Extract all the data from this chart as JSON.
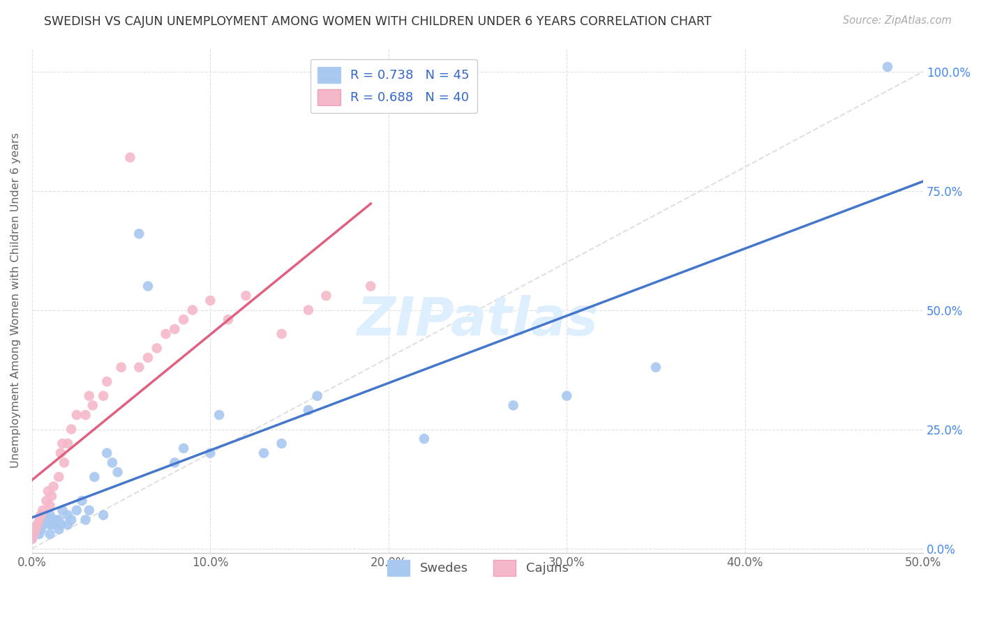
{
  "title": "SWEDISH VS CAJUN UNEMPLOYMENT AMONG WOMEN WITH CHILDREN UNDER 6 YEARS CORRELATION CHART",
  "source": "Source: ZipAtlas.com",
  "ylabel": "Unemployment Among Women with Children Under 6 years",
  "xlim": [
    0,
    0.5
  ],
  "ylim": [
    -0.01,
    1.05
  ],
  "legend_label1": "R = 0.738   N = 45",
  "legend_label2": "R = 0.688   N = 40",
  "legend_label_bottom1": "Swedes",
  "legend_label_bottom2": "Cajuns",
  "swedes_color": "#a8c8f0",
  "cajuns_color": "#f5b8c8",
  "regression_color_swedes": "#4477cc",
  "regression_color_cajuns": "#e06080",
  "diagonal_color": "#d8d8d8",
  "swedes_x": [
    0.0,
    0.001,
    0.002,
    0.003,
    0.004,
    0.005,
    0.006,
    0.007,
    0.008,
    0.01,
    0.01,
    0.01,
    0.012,
    0.013,
    0.015,
    0.015,
    0.016,
    0.017,
    0.02,
    0.02,
    0.022,
    0.025,
    0.028,
    0.03,
    0.032,
    0.035,
    0.04,
    0.042,
    0.045,
    0.048,
    0.06,
    0.065,
    0.08,
    0.085,
    0.1,
    0.105,
    0.13,
    0.14,
    0.155,
    0.16,
    0.22,
    0.27,
    0.3,
    0.35,
    0.48
  ],
  "swedes_y": [
    0.02,
    0.03,
    0.04,
    0.05,
    0.03,
    0.04,
    0.05,
    0.06,
    0.07,
    0.03,
    0.05,
    0.07,
    0.05,
    0.06,
    0.04,
    0.06,
    0.05,
    0.08,
    0.05,
    0.07,
    0.06,
    0.08,
    0.1,
    0.06,
    0.08,
    0.15,
    0.07,
    0.2,
    0.18,
    0.16,
    0.66,
    0.55,
    0.18,
    0.21,
    0.2,
    0.28,
    0.2,
    0.22,
    0.29,
    0.32,
    0.23,
    0.3,
    0.32,
    0.38,
    1.01
  ],
  "cajuns_x": [
    0.0,
    0.001,
    0.002,
    0.003,
    0.004,
    0.005,
    0.006,
    0.008,
    0.009,
    0.01,
    0.011,
    0.012,
    0.015,
    0.016,
    0.017,
    0.018,
    0.02,
    0.022,
    0.025,
    0.03,
    0.032,
    0.034,
    0.04,
    0.042,
    0.05,
    0.055,
    0.06,
    0.065,
    0.07,
    0.075,
    0.08,
    0.085,
    0.09,
    0.1,
    0.11,
    0.12,
    0.14,
    0.155,
    0.165,
    0.19
  ],
  "cajuns_y": [
    0.02,
    0.03,
    0.04,
    0.05,
    0.06,
    0.07,
    0.08,
    0.1,
    0.12,
    0.09,
    0.11,
    0.13,
    0.15,
    0.2,
    0.22,
    0.18,
    0.22,
    0.25,
    0.28,
    0.28,
    0.32,
    0.3,
    0.32,
    0.35,
    0.38,
    0.82,
    0.38,
    0.4,
    0.42,
    0.45,
    0.46,
    0.48,
    0.5,
    0.52,
    0.48,
    0.53,
    0.45,
    0.5,
    0.53,
    0.55
  ],
  "background_color": "#ffffff",
  "grid_color": "#e0e0e0",
  "title_color": "#333333",
  "axis_label_color": "#666666",
  "tick_color_x": "#666666",
  "right_tick_color": "#4488ee",
  "watermark_color": "#ddeeff"
}
